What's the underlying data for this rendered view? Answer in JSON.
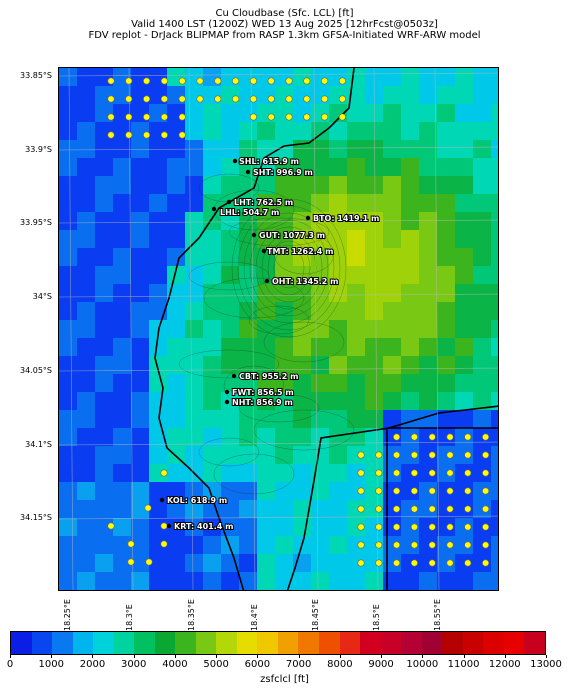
{
  "title": {
    "line1": "Cu Cloudbase (Sfc. LCL) [ft]",
    "line2": "Valid 1400 LST (1200Z) WED 13 Aug 2025 [12hrFcst@0503z]",
    "line3": "FDV replot - DrJack BLIPMAP from RASP 1.3km GFSA-Initiated WRF-ARW model"
  },
  "axes": {
    "lat_labels": [
      "33.85°S",
      "33.9°S",
      "33.95°S",
      "34°S",
      "34.05°S",
      "34.1°S",
      "34.15°S"
    ],
    "lon_labels": [
      "18.25°E",
      "18.3°E",
      "18.35°E",
      "18.4°E",
      "18.45°E",
      "18.5°E",
      "18.55°E"
    ]
  },
  "stations": [
    {
      "name": "SHL",
      "value": "615.9 m",
      "label": "SHL: 615.9 m"
    },
    {
      "name": "SHT",
      "value": "996.9 m",
      "label": "SHT: 996.9 m"
    },
    {
      "name": "LHT",
      "value": "762.5 m",
      "label": "LHT: 762.5 m"
    },
    {
      "name": "LHL",
      "value": "504.7 m",
      "label": "LHL: 504.7 m"
    },
    {
      "name": "BTO",
      "value": "1419.1 m",
      "label": "BTO: 1419.1 m"
    },
    {
      "name": "GUT",
      "value": "1077.3 m",
      "label": "GUT: 1077.3 m"
    },
    {
      "name": "TMT",
      "value": "1262.4 m",
      "label": "TMT: 1262.4 m"
    },
    {
      "name": "OHT",
      "value": "1345.2 m",
      "label": "OHT: 1345.2 m"
    },
    {
      "name": "CBT",
      "value": "955.2 m",
      "label": "CBT: 955.2 m"
    },
    {
      "name": "FWT",
      "value": "856.5 m",
      "label": "FWT: 856.5 m"
    },
    {
      "name": "NHT",
      "value": "856.9 m",
      "label": "NHT: 856.9 m"
    },
    {
      "name": "KOL",
      "value": "618.9 m",
      "label": "KOL: 618.9 m"
    },
    {
      "name": "KRT",
      "value": "401.4 m",
      "label": "KRT: 401.4 m"
    }
  ],
  "colorbar": {
    "label": "zsfclcl [ft]",
    "ticks": [
      "0",
      "1000",
      "2000",
      "3000",
      "4000",
      "5000",
      "6000",
      "7000",
      "8000",
      "9000",
      "10000",
      "11000",
      "12000",
      "13000"
    ],
    "colors": [
      "#0a1ee6",
      "#0a46f0",
      "#0a78f0",
      "#00b4ee",
      "#00d2dc",
      "#00d2a0",
      "#00c060",
      "#0aa832",
      "#3cb41e",
      "#78c814",
      "#b4d70a",
      "#e6dc00",
      "#f0c800",
      "#f0a000",
      "#f07800",
      "#ee5000",
      "#e62814",
      "#d2001e",
      "#c80028",
      "#b40032",
      "#a00032",
      "#b40000",
      "#c80000",
      "#dc0000",
      "#e60000",
      "#c8001e"
    ]
  }
}
